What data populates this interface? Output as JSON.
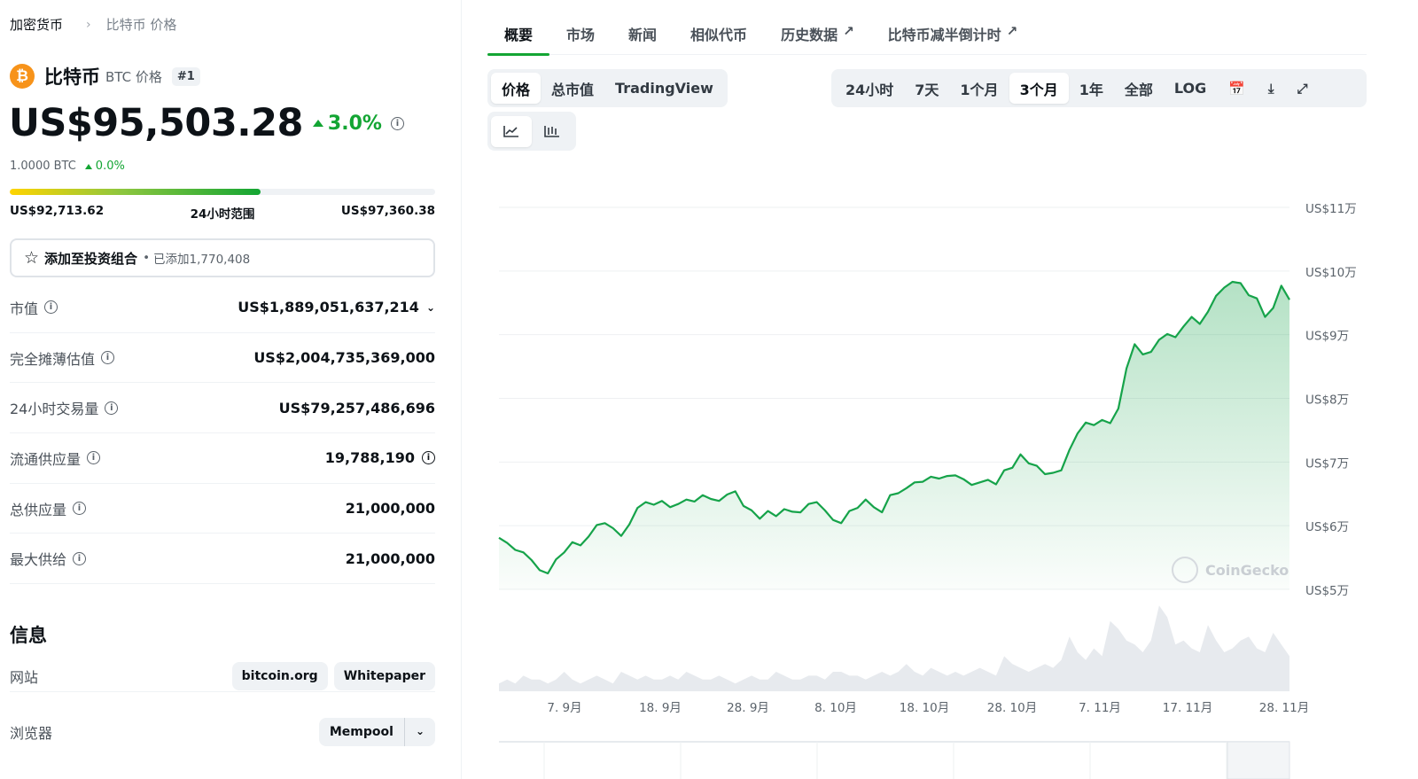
{
  "breadcrumb": {
    "root": "加密货币",
    "current": "比特币 价格"
  },
  "coin": {
    "logo_letter": "₿",
    "name": "比特币",
    "symbol_label": "BTC 价格",
    "rank": "#1"
  },
  "price": {
    "value": "US$95,503.28",
    "change": "3.0%"
  },
  "btc_price": {
    "value": "1.0000 BTC",
    "change": "0.0%"
  },
  "range": {
    "low": "US$92,713.62",
    "label": "24小时范围",
    "high": "US$97,360.38",
    "position_pct": 59
  },
  "portfolio": {
    "label": "添加至投资组合",
    "dot": "•",
    "added": "已添加1,770,408"
  },
  "stats": [
    {
      "label": "市值",
      "value": "US$1,889,051,637,214"
    },
    {
      "label": "完全摊薄估值",
      "value": "US$2,004,735,369,000"
    },
    {
      "label": "24小时交易量",
      "value": "US$79,257,486,696"
    },
    {
      "label": "流通供应量",
      "value": "19,788,190"
    },
    {
      "label": "总供应量",
      "value": "21,000,000"
    },
    {
      "label": "最大供给",
      "value": "21,000,000"
    }
  ],
  "info": {
    "title": "信息",
    "website_label": "网站",
    "websites": [
      "bitcoin.org",
      "Whitepaper"
    ],
    "explorer_label": "浏览器",
    "explorer": "Mempool"
  },
  "tabs": [
    "概要",
    "市场",
    "新闻",
    "相似代币",
    "历史数据",
    "比特币减半倒计时"
  ],
  "view_tabs": [
    "价格",
    "总市值",
    "TradingView"
  ],
  "ranges": [
    "24小时",
    "7天",
    "1个月",
    "3个月",
    "1年",
    "全部",
    "LOG"
  ],
  "active_range": "3个月",
  "chart_data": {
    "type": "area",
    "series": [
      {
        "values": [
          58.1,
          57.3,
          56.2,
          55.8,
          54.6,
          53.0,
          52.5,
          54.7,
          55.8,
          57.4,
          56.9,
          58.3,
          60.1,
          60.4,
          59.6,
          58.4,
          60.2,
          62.8,
          63.7,
          63.3,
          63.9,
          62.9,
          63.4,
          64.1,
          63.8,
          64.8,
          64.2,
          63.9,
          64.9,
          65.4,
          63.1,
          62.4,
          61.1,
          62.3,
          61.5,
          62.6,
          62.2,
          62.1,
          63.4,
          63.7,
          62.4,
          60.9,
          60.4,
          62.3,
          62.8,
          64.1,
          62.9,
          62.1,
          64.8,
          65.1,
          65.9,
          66.8,
          66.9,
          67.7,
          67.4,
          67.8,
          67.9,
          67.3,
          66.4,
          66.8,
          67.2,
          66.5,
          68.7,
          69.1,
          71.2,
          69.8,
          69.4,
          68.1,
          68.3,
          68.7,
          71.9,
          74.5,
          76.2,
          75.8,
          76.6,
          76.1,
          78.4,
          84.7,
          88.5,
          86.9,
          87.3,
          89.2,
          90.1,
          89.6,
          91.3,
          92.8,
          91.7,
          93.6,
          96.1,
          97.4,
          98.3,
          98.1,
          96.2,
          95.7,
          92.8,
          94.2,
          97.7,
          95.5
        ],
        "x_start": "7. 9月",
        "x_end": "28. 11月"
      }
    ],
    "volume": [
      2,
      3,
      2,
      4,
      3,
      3,
      2,
      3,
      5,
      3,
      2,
      3,
      4,
      3,
      2,
      5,
      4,
      3,
      4,
      3,
      3,
      4,
      3,
      5,
      4,
      3,
      3,
      4,
      3,
      2,
      3,
      4,
      3,
      3,
      5,
      4,
      3,
      3,
      4,
      4,
      3,
      5,
      5,
      4,
      4,
      3,
      4,
      5,
      4,
      5,
      7,
      5,
      4,
      6,
      5,
      4,
      5,
      4,
      5,
      6,
      5,
      4,
      9,
      7,
      6,
      5,
      6,
      7,
      6,
      8,
      14,
      10,
      8,
      11,
      9,
      18,
      16,
      13,
      12,
      10,
      13,
      22,
      19,
      12,
      13,
      11,
      10,
      17,
      13,
      10,
      11,
      13,
      14,
      11,
      10,
      15,
      12,
      9
    ],
    "y_ticks": [
      "US$11万",
      "US$10万",
      "US$9万",
      "US$8万",
      "US$7万",
      "US$6万",
      "US$5万"
    ],
    "ylim": [
      50,
      110
    ],
    "x_ticks": [
      "7. 9月",
      "18. 9月",
      "28. 9月",
      "8. 10月",
      "18. 10月",
      "28. 10月",
      "7. 11月",
      "17. 11月",
      "28. 11月"
    ],
    "line_color": "#16a34a",
    "watermark": "CoinGecko"
  }
}
